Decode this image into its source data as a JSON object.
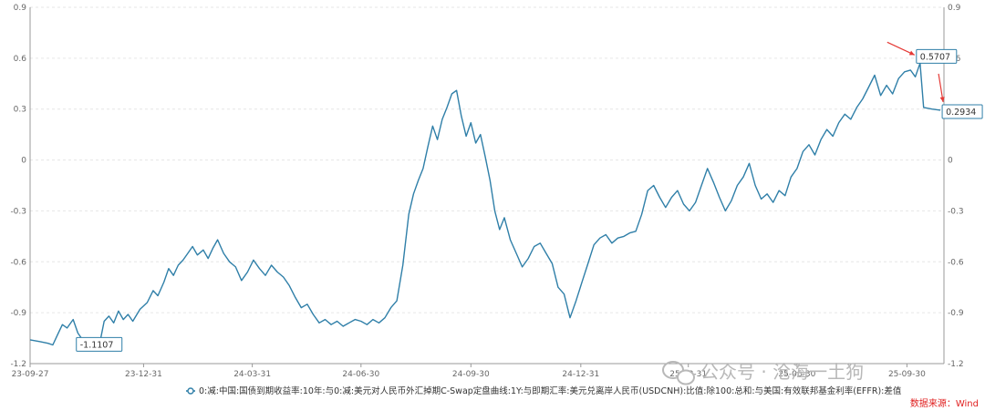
{
  "chart_data": {
    "type": "line",
    "title": "",
    "xlabel": "",
    "ylabel": "",
    "ylim": [
      -1.2,
      0.9
    ],
    "y_ticks": [
      -1.2,
      -0.9,
      -0.6,
      -0.3,
      0,
      0.3,
      0.6,
      0.9
    ],
    "y_tick_labels": [
      "-1.2",
      "-0.9",
      "-0.6",
      "-0.3",
      "0",
      "0.3",
      "0.6",
      "0.9"
    ],
    "x_ticks": [
      "23-09-27",
      "23-12-31",
      "24-03-31",
      "24-06-30",
      "24-09-30",
      "24-12-31",
      "25-03-31",
      "25-06-30",
      "25-09-30"
    ],
    "x_range": [
      "2023-09-27",
      "2025-10-31"
    ],
    "grid": "horizontal dashed",
    "legend_position": "bottom-center",
    "line_color": "#2f7fa8",
    "series": [
      {
        "name": "0:减:中国:国债到期收益率:10年:与0:减:美元对人民币外汇掉期C-Swap定盘曲线:1Y:与即期汇率:美元兑离岸人民币(USDCNH):比值:除100:总和:与美国:有效联邦基金利率(EFFR):差值",
        "points": [
          [
            "2023-09-27",
            -1.06
          ],
          [
            "2023-10-05",
            -1.07
          ],
          [
            "2023-10-12",
            -1.08
          ],
          [
            "2023-10-16",
            -1.09
          ],
          [
            "2023-10-20",
            -1.03
          ],
          [
            "2023-10-24",
            -0.97
          ],
          [
            "2023-10-28",
            -0.99
          ],
          [
            "2023-11-02",
            -0.94
          ],
          [
            "2023-11-06",
            -1.02
          ],
          [
            "2023-11-10",
            -1.06
          ],
          [
            "2023-11-14",
            -1.05
          ],
          [
            "2023-11-17",
            -1.07
          ],
          [
            "2023-11-20",
            -1.11
          ],
          [
            "2023-11-24",
            -1.09
          ],
          [
            "2023-11-28",
            -0.95
          ],
          [
            "2023-12-02",
            -0.92
          ],
          [
            "2023-12-06",
            -0.96
          ],
          [
            "2023-12-10",
            -0.89
          ],
          [
            "2023-12-14",
            -0.94
          ],
          [
            "2023-12-18",
            -0.91
          ],
          [
            "2023-12-22",
            -0.95
          ],
          [
            "2023-12-28",
            -0.88
          ],
          [
            "2024-01-03",
            -0.84
          ],
          [
            "2024-01-08",
            -0.77
          ],
          [
            "2024-01-12",
            -0.8
          ],
          [
            "2024-01-17",
            -0.72
          ],
          [
            "2024-01-21",
            -0.64
          ],
          [
            "2024-01-25",
            -0.68
          ],
          [
            "2024-01-29",
            -0.62
          ],
          [
            "2024-02-02",
            -0.59
          ],
          [
            "2024-02-06",
            -0.55
          ],
          [
            "2024-02-10",
            -0.51
          ],
          [
            "2024-02-14",
            -0.56
          ],
          [
            "2024-02-19",
            -0.53
          ],
          [
            "2024-02-23",
            -0.58
          ],
          [
            "2024-02-27",
            -0.52
          ],
          [
            "2024-03-02",
            -0.47
          ],
          [
            "2024-03-07",
            -0.55
          ],
          [
            "2024-03-12",
            -0.6
          ],
          [
            "2024-03-17",
            -0.63
          ],
          [
            "2024-03-22",
            -0.71
          ],
          [
            "2024-03-27",
            -0.66
          ],
          [
            "2024-04-01",
            -0.59
          ],
          [
            "2024-04-06",
            -0.64
          ],
          [
            "2024-04-11",
            -0.68
          ],
          [
            "2024-04-16",
            -0.62
          ],
          [
            "2024-04-21",
            -0.66
          ],
          [
            "2024-04-26",
            -0.69
          ],
          [
            "2024-05-01",
            -0.74
          ],
          [
            "2024-05-06",
            -0.81
          ],
          [
            "2024-05-11",
            -0.87
          ],
          [
            "2024-05-16",
            -0.85
          ],
          [
            "2024-05-21",
            -0.91
          ],
          [
            "2024-05-26",
            -0.96
          ],
          [
            "2024-05-31",
            -0.94
          ],
          [
            "2024-06-05",
            -0.97
          ],
          [
            "2024-06-10",
            -0.95
          ],
          [
            "2024-06-15",
            -0.98
          ],
          [
            "2024-06-20",
            -0.96
          ],
          [
            "2024-06-25",
            -0.94
          ],
          [
            "2024-06-30",
            -0.95
          ],
          [
            "2024-07-05",
            -0.97
          ],
          [
            "2024-07-10",
            -0.94
          ],
          [
            "2024-07-15",
            -0.96
          ],
          [
            "2024-07-20",
            -0.93
          ],
          [
            "2024-07-25",
            -0.87
          ],
          [
            "2024-07-30",
            -0.83
          ],
          [
            "2024-08-04",
            -0.62
          ],
          [
            "2024-08-09",
            -0.32
          ],
          [
            "2024-08-13",
            -0.2
          ],
          [
            "2024-08-17",
            -0.12
          ],
          [
            "2024-08-21",
            -0.05
          ],
          [
            "2024-08-25",
            0.08
          ],
          [
            "2024-08-29",
            0.2
          ],
          [
            "2024-09-02",
            0.12
          ],
          [
            "2024-09-06",
            0.24
          ],
          [
            "2024-09-10",
            0.31
          ],
          [
            "2024-09-14",
            0.39
          ],
          [
            "2024-09-18",
            0.41
          ],
          [
            "2024-09-22",
            0.26
          ],
          [
            "2024-09-26",
            0.14
          ],
          [
            "2024-09-30",
            0.22
          ],
          [
            "2024-10-04",
            0.1
          ],
          [
            "2024-10-08",
            0.15
          ],
          [
            "2024-10-12",
            0.02
          ],
          [
            "2024-10-16",
            -0.12
          ],
          [
            "2024-10-20",
            -0.3
          ],
          [
            "2024-10-24",
            -0.41
          ],
          [
            "2024-10-28",
            -0.34
          ],
          [
            "2024-11-02",
            -0.47
          ],
          [
            "2024-11-07",
            -0.55
          ],
          [
            "2024-11-12",
            -0.63
          ],
          [
            "2024-11-17",
            -0.58
          ],
          [
            "2024-11-22",
            -0.51
          ],
          [
            "2024-11-27",
            -0.49
          ],
          [
            "2024-12-02",
            -0.55
          ],
          [
            "2024-12-07",
            -0.61
          ],
          [
            "2024-12-12",
            -0.75
          ],
          [
            "2024-12-17",
            -0.79
          ],
          [
            "2024-12-22",
            -0.93
          ],
          [
            "2024-12-27",
            -0.83
          ],
          [
            "2025-01-01",
            -0.72
          ],
          [
            "2025-01-06",
            -0.61
          ],
          [
            "2025-01-11",
            -0.5
          ],
          [
            "2025-01-16",
            -0.46
          ],
          [
            "2025-01-21",
            -0.44
          ],
          [
            "2025-01-26",
            -0.49
          ],
          [
            "2025-01-31",
            -0.46
          ],
          [
            "2025-02-05",
            -0.45
          ],
          [
            "2025-02-10",
            -0.43
          ],
          [
            "2025-02-15",
            -0.42
          ],
          [
            "2025-02-20",
            -0.32
          ],
          [
            "2025-02-25",
            -0.18
          ],
          [
            "2025-03-02",
            -0.15
          ],
          [
            "2025-03-07",
            -0.22
          ],
          [
            "2025-03-12",
            -0.28
          ],
          [
            "2025-03-17",
            -0.22
          ],
          [
            "2025-03-22",
            -0.18
          ],
          [
            "2025-03-27",
            -0.26
          ],
          [
            "2025-04-01",
            -0.3
          ],
          [
            "2025-04-06",
            -0.25
          ],
          [
            "2025-04-11",
            -0.15
          ],
          [
            "2025-04-16",
            -0.05
          ],
          [
            "2025-04-21",
            -0.13
          ],
          [
            "2025-04-26",
            -0.22
          ],
          [
            "2025-05-01",
            -0.3
          ],
          [
            "2025-05-06",
            -0.24
          ],
          [
            "2025-05-11",
            -0.15
          ],
          [
            "2025-05-16",
            -0.1
          ],
          [
            "2025-05-21",
            -0.02
          ],
          [
            "2025-05-26",
            -0.15
          ],
          [
            "2025-05-31",
            -0.23
          ],
          [
            "2025-06-05",
            -0.2
          ],
          [
            "2025-06-10",
            -0.25
          ],
          [
            "2025-06-15",
            -0.18
          ],
          [
            "2025-06-20",
            -0.21
          ],
          [
            "2025-06-25",
            -0.1
          ],
          [
            "2025-06-30",
            -0.05
          ],
          [
            "2025-07-05",
            0.05
          ],
          [
            "2025-07-10",
            0.09
          ],
          [
            "2025-07-15",
            0.03
          ],
          [
            "2025-07-20",
            0.12
          ],
          [
            "2025-07-25",
            0.18
          ],
          [
            "2025-07-30",
            0.14
          ],
          [
            "2025-08-04",
            0.22
          ],
          [
            "2025-08-09",
            0.27
          ],
          [
            "2025-08-14",
            0.24
          ],
          [
            "2025-08-19",
            0.31
          ],
          [
            "2025-08-24",
            0.36
          ],
          [
            "2025-08-29",
            0.43
          ],
          [
            "2025-09-03",
            0.5
          ],
          [
            "2025-09-08",
            0.38
          ],
          [
            "2025-09-13",
            0.44
          ],
          [
            "2025-09-18",
            0.39
          ],
          [
            "2025-09-23",
            0.48
          ],
          [
            "2025-09-28",
            0.52
          ],
          [
            "2025-10-03",
            0.53
          ],
          [
            "2025-10-07",
            0.49
          ],
          [
            "2025-10-11",
            0.5707
          ],
          [
            "2025-10-14",
            0.31
          ],
          [
            "2025-10-21",
            0.3
          ],
          [
            "2025-10-28",
            0.2934
          ]
        ]
      }
    ],
    "annotations": [
      {
        "label": "-1.1107",
        "x": "2023-11-20",
        "y": -1.1107
      },
      {
        "label": "0.5707",
        "x": "2025-10-11",
        "y": 0.5707
      },
      {
        "label": "0.2934",
        "x": "2025-10-28",
        "y": 0.2934
      }
    ]
  },
  "footer": {
    "source_label": "数据来源：Wind",
    "watermark_text": "公众号 · 沧海一土狗"
  },
  "colors": {
    "line": "#2f7fa8",
    "arrow": "#e53935",
    "grid": "#e6e6e6",
    "axis": "#999999"
  }
}
